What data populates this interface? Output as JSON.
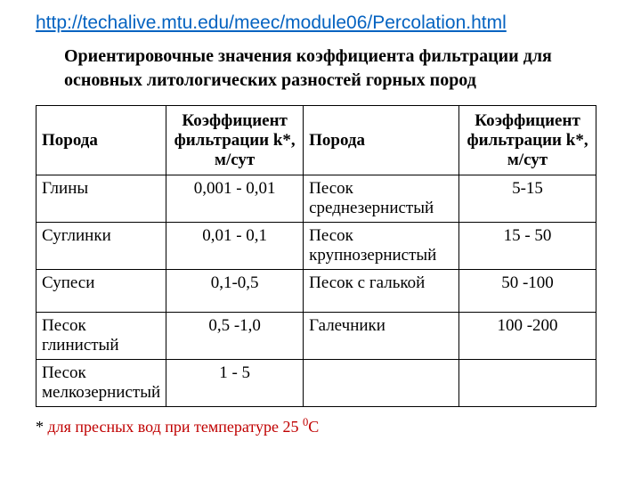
{
  "link": {
    "text": "http://techalive.mtu.edu/meec/module06/Percolation.html",
    "color": "#0563c1"
  },
  "title": "Ориентировочные значения коэффициента фильтрации для основных литологических разностей горных пород",
  "table": {
    "headers": [
      "Порода",
      "Коэффициент фильтрации k*, м/сут",
      "Порода",
      "Коэффициент фильтрации k*, м/сут"
    ],
    "rows": [
      [
        "Глины",
        "0,001 - 0,01",
        "Песок среднезернистый",
        "5-15"
      ],
      [
        "Суглинки",
        "0,01 - 0,1",
        "Песок крупнозернистый",
        "15 - 50"
      ],
      [
        "Супеси",
        "0,1-0,5",
        "Песок с галькой",
        "50 -100"
      ],
      [
        "Песок глинистый",
        "0,5 -1,0",
        "Галечники",
        "100 -200"
      ],
      [
        "Песок мелкозернистый",
        "1 - 5",
        "",
        ""
      ]
    ],
    "border_color": "#000000",
    "header_fontsize": 19,
    "cell_fontsize": 19
  },
  "footnote": {
    "star": "* ",
    "text": "для пресных вод при температуре 25 ",
    "superscript": "0",
    "suffix": "С",
    "color": "#c00000"
  },
  "background_color": "#ffffff"
}
